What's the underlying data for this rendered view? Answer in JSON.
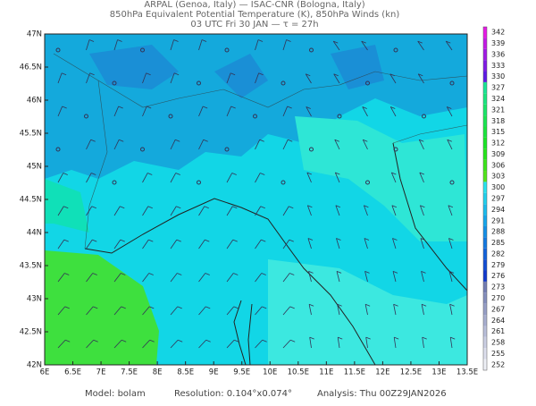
{
  "header": {
    "line1": "ARPAL (Genoa, Italy)  —  ISAC-CNR (Bologna, Italy)",
    "line2": "850hPa Equivalent Potential Temperature (K), 850hPa Winds (kn)",
    "line3": "03 UTC Fri 30 JAN  —  τ = 27h"
  },
  "map": {
    "lat_labels": [
      "47N",
      "46.5N",
      "46N",
      "45.5N",
      "45N",
      "44.5N",
      "44N",
      "43.5N",
      "43N",
      "42.5N",
      "42N"
    ],
    "lon_labels": [
      "6E",
      "6.5E",
      "7E",
      "7.5E",
      "8E",
      "8.5E",
      "9E",
      "9.5E",
      "10E",
      "10.5E",
      "11E",
      "11.5E",
      "12E",
      "12.5E",
      "13E",
      "13.5E"
    ]
  },
  "colorbar": {
    "labels": [
      "342",
      "339",
      "336",
      "333",
      "330",
      "327",
      "324",
      "321",
      "318",
      "315",
      "312",
      "309",
      "306",
      "303",
      "300",
      "297",
      "294",
      "291",
      "288",
      "285",
      "282",
      "279",
      "276",
      "273",
      "270",
      "267",
      "264",
      "261",
      "258",
      "255",
      "252"
    ]
  },
  "footer": {
    "model": "Model: bolam",
    "resolution": "Resolution: 0.104°x0.074°",
    "analysis": "Analysis: Thu 00Z29JAN2026"
  }
}
